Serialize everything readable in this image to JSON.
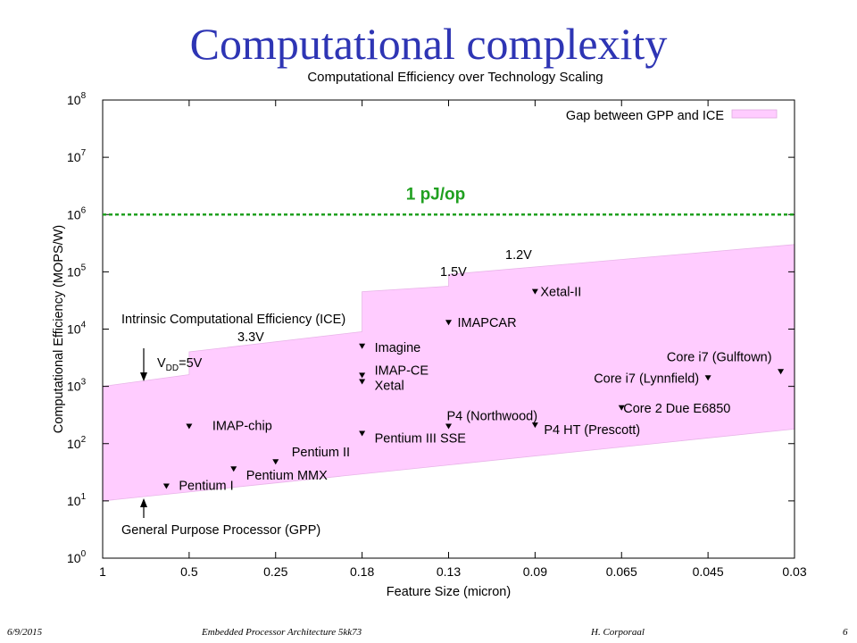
{
  "slide": {
    "title": "Computational complexity",
    "footer_date": "6/9/2015",
    "footer_course": "Embedded Processor Architecture 5kk73",
    "footer_author": "H. Corporaal",
    "footer_page": "6"
  },
  "chart_data": {
    "type": "scatter",
    "title": "Computational Efficiency over Technology Scaling",
    "xlabel": "Feature Size (micron)",
    "ylabel": "Computational Efficiency (MOPS/W)",
    "y_scale": "log",
    "ylim": [
      1,
      100000000
    ],
    "x_ticks": [
      "1",
      "0.5",
      "0.25",
      "0.18",
      "0.13",
      "0.09",
      "0.065",
      "0.045",
      "0.03"
    ],
    "y_ticks": [
      {
        "base": "10",
        "exp": "0",
        "value": 1
      },
      {
        "base": "10",
        "exp": "1",
        "value": 10
      },
      {
        "base": "10",
        "exp": "2",
        "value": 100
      },
      {
        "base": "10",
        "exp": "3",
        "value": 1000
      },
      {
        "base": "10",
        "exp": "4",
        "value": 10000
      },
      {
        "base": "10",
        "exp": "5",
        "value": 100000
      },
      {
        "base": "10",
        "exp": "6",
        "value": 1000000
      },
      {
        "base": "10",
        "exp": "7",
        "value": 10000000
      },
      {
        "base": "10",
        "exp": "8",
        "value": 100000000
      }
    ],
    "legend": {
      "label": "Gap between GPP and ICE",
      "color": "#ffccff",
      "position": "top-right"
    },
    "gap_band": {
      "upper": [
        [
          1,
          1000
        ],
        [
          0.5,
          1600
        ],
        [
          0.5,
          4000
        ],
        [
          0.18,
          9000
        ],
        [
          0.18,
          45000
        ],
        [
          0.13,
          56000
        ],
        [
          0.13,
          90000
        ],
        [
          0.03,
          300000
        ]
      ],
      "lower": [
        [
          1,
          10
        ],
        [
          0.03,
          180
        ]
      ]
    },
    "reference_line": {
      "label": "1 pJ/op",
      "value": 1000000,
      "color": "#20a020"
    },
    "annotations": {
      "ice": "Intrinsic Computational Efficiency (ICE)",
      "gpp": "General Purpose Processor (GPP)",
      "vdd_main": "V",
      "vdd_sub": "DD",
      "vdd_rest": "=5V",
      "v33": "3.3V",
      "v15": "1.5V",
      "v12": "1.2V"
    },
    "points": [
      {
        "name": "Pentium I",
        "x": 0.6,
        "y": 18
      },
      {
        "name": "IMAP-chip",
        "x": 0.5,
        "y": 200
      },
      {
        "name": "Pentium MMX",
        "x": 0.35,
        "y": 36
      },
      {
        "name": "Pentium II",
        "x": 0.25,
        "y": 48
      },
      {
        "name": "Pentium III SSE",
        "x": 0.18,
        "y": 150
      },
      {
        "name": "Imagine",
        "x": 0.18,
        "y": 5000
      },
      {
        "name": "IMAP-CE",
        "x": 0.18,
        "y": 1550
      },
      {
        "name": "Xetal",
        "x": 0.18,
        "y": 1200
      },
      {
        "name": "IMAPCAR",
        "x": 0.13,
        "y": 13000
      },
      {
        "name": "P4 (Northwood)",
        "x": 0.13,
        "y": 200
      },
      {
        "name": "Xetal-II",
        "x": 0.09,
        "y": 45000
      },
      {
        "name": "P4 HT (Prescott)",
        "x": 0.09,
        "y": 210
      },
      {
        "name": "Core 2 Due E6850",
        "x": 0.065,
        "y": 420
      },
      {
        "name": "Core i7 (Lynnfield)",
        "x": 0.045,
        "y": 1400
      },
      {
        "name": "Core i7 (Gulftown)",
        "x": 0.032,
        "y": 1800
      }
    ]
  }
}
